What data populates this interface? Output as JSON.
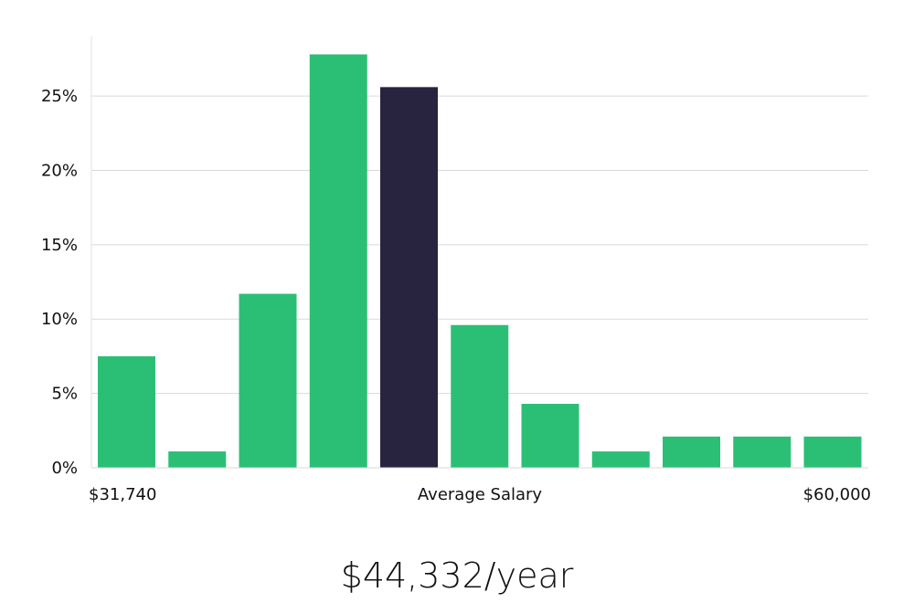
{
  "colors": {
    "bar": "#2bbf76",
    "highlight": "#28243f",
    "grid": "#d9d9d9",
    "axis": "#e0e0e0"
  },
  "chart_data": {
    "type": "bar",
    "title": "",
    "ylabel": "",
    "xlabel": "Average Salary",
    "ylim": [
      0,
      29
    ],
    "yticks": [
      0,
      5,
      10,
      15,
      20,
      25
    ],
    "ytick_labels": [
      "0%",
      "5%",
      "10%",
      "15%",
      "20%",
      "25%"
    ],
    "values": [
      7.5,
      1.1,
      11.7,
      27.8,
      25.6,
      9.6,
      4.3,
      1.1,
      2.1,
      2.1,
      2.1
    ],
    "highlight_index": 4,
    "x_min_label": "$31,740",
    "x_center_label": "Average Salary",
    "x_max_label": "$60,000"
  },
  "salary_display": "$44,332/year"
}
